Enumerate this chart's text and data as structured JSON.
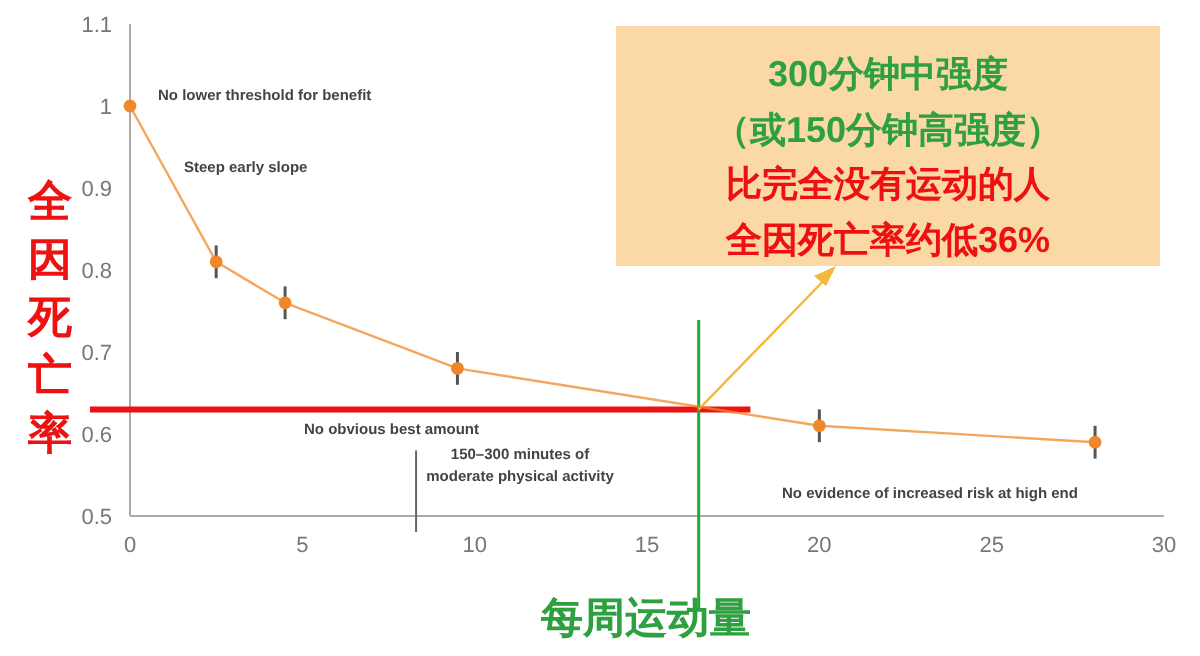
{
  "chart_data": {
    "type": "line",
    "xlabel": "每周运动量",
    "ylabel": "全因死亡率",
    "x": [
      0,
      2.5,
      4.5,
      9.5,
      20,
      28
    ],
    "series": [
      {
        "color": "#f0882a",
        "values": [
          1.0,
          0.81,
          0.76,
          0.68,
          0.61,
          0.59
        ],
        "errors": [
          null,
          0.02,
          0.02,
          0.02,
          0.02,
          0.02
        ]
      }
    ],
    "xlim": [
      0,
      30
    ],
    "xticks": [
      0,
      5,
      10,
      15,
      20,
      25,
      30
    ],
    "ylim": [
      0.5,
      1.1
    ],
    "yticks": [
      0.5,
      0.6,
      0.7,
      0.8,
      0.9,
      1,
      1.1
    ],
    "marker": "circle",
    "line_style": "solid",
    "grid": false,
    "ref_lines": [
      {
        "axis": "y",
        "value": 0.63,
        "color": "#ee1111"
      },
      {
        "axis": "x",
        "value": 16.5,
        "color": "#22aa33"
      },
      {
        "axis": "x",
        "value": 8.3,
        "color": "#666666",
        "label": "150–300 minutes of\nmoderate physical activity"
      }
    ],
    "annotations": [
      "No lower threshold for benefit",
      "Steep early slope",
      "No obvious best amount",
      "No evidence of increased risk at high end",
      "300分钟中强度",
      "（或150分钟高强度）",
      "比完全没有运动的人",
      {
        "text": "全因死亡率约低36%",
        "x": 16.5,
        "y": 0.63
      }
    ]
  }
}
